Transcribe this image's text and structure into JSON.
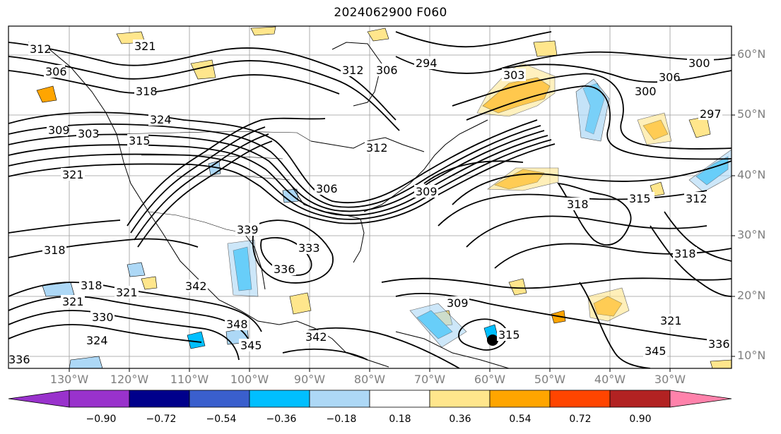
{
  "map": {
    "title": "2024062900 F060",
    "lat_labels": [
      "60°N",
      "50°N",
      "40°N",
      "30°N",
      "20°N",
      "10°N"
    ],
    "lon_labels": [
      "130°W",
      "120°W",
      "110°W",
      "100°W",
      "90°W",
      "80°W",
      "70°W",
      "60°W",
      "50°W",
      "40°W",
      "30°W"
    ],
    "contour_labels": [
      "321",
      "312",
      "306",
      "318",
      "324",
      "309",
      "303",
      "315",
      "321",
      "318",
      "330",
      "321",
      "324",
      "306",
      "312",
      "306",
      "294",
      "303",
      "300",
      "300",
      "297",
      "318",
      "306",
      "309",
      "312",
      "315",
      "339",
      "336",
      "333",
      "342",
      "345",
      "348",
      "342",
      "318",
      "321",
      "336",
      "345",
      "315",
      "309",
      "312",
      "318",
      "321",
      "336"
    ]
  },
  "colorbar": {
    "tick_labels": [
      "−0.90",
      "−0.72",
      "−0.54",
      "−0.36",
      "−0.18",
      "0.18",
      "0.36",
      "0.54",
      "0.72",
      "0.90"
    ],
    "colors": [
      "#9932cc",
      "#00008b",
      "#3a5fcd",
      "#00bfff",
      "#add8f6",
      "#ffffff",
      "#ffe68c",
      "#ffa500",
      "#ff4500",
      "#b22222",
      "#ff82ab"
    ]
  }
}
